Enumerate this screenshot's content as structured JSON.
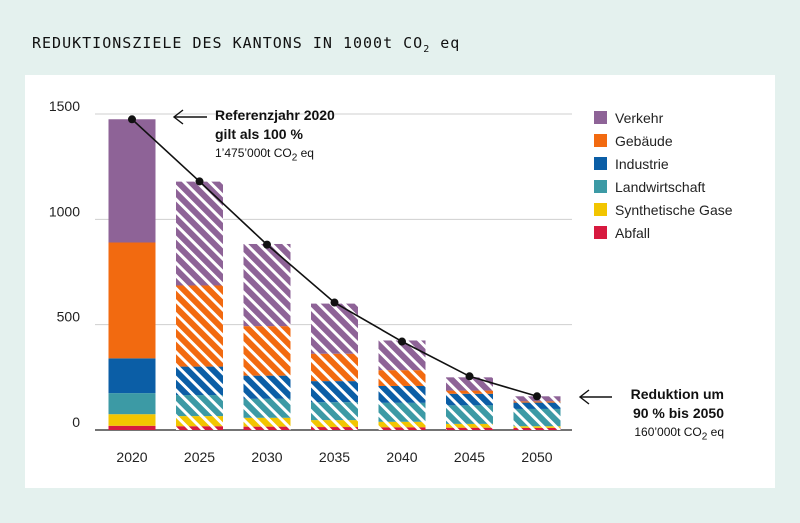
{
  "title": {
    "main": "REDUKTIONSZIELE DES KANTONS IN 1000t CO",
    "subscript": "2",
    "suffix": " eq"
  },
  "chart_data": {
    "type": "bar",
    "stacked": true,
    "title": "REDUKTIONSZIELE DES KANTONS IN 1000t CO2 eq",
    "xlabel": "",
    "ylabel": "",
    "ylim": [
      0,
      1500
    ],
    "yticks": [
      "0",
      "500",
      "1000",
      "1500"
    ],
    "categories": [
      "2020",
      "2025",
      "2030",
      "2035",
      "2040",
      "2045",
      "2050"
    ],
    "hatched_from_index": 1,
    "series": [
      {
        "name": "Abfall",
        "color": "#d7193f",
        "values": [
          20,
          18,
          16,
          14,
          13,
          11,
          10
        ]
      },
      {
        "name": "Synthetische Gase",
        "color": "#f2c500",
        "values": [
          55,
          48,
          42,
          33,
          26,
          18,
          8
        ]
      },
      {
        "name": "Landwirtschaft",
        "color": "#3c9aa5",
        "values": [
          100,
          100,
          90,
          85,
          90,
          88,
          82
        ]
      },
      {
        "name": "Industrie",
        "color": "#0b5ea6",
        "values": [
          165,
          135,
          110,
          100,
          80,
          55,
          30
        ]
      },
      {
        "name": "Gebäude",
        "color": "#f26a10",
        "values": [
          550,
          385,
          235,
          130,
          75,
          15,
          6
        ]
      },
      {
        "name": "Verkehr",
        "color": "#8e6397",
        "values": [
          585,
          493,
          390,
          238,
          141,
          63,
          24
        ]
      }
    ],
    "line": {
      "name": "Zielpfad",
      "values": [
        1475,
        1180,
        880,
        605,
        420,
        255,
        160
      ]
    }
  },
  "annotations": {
    "reference": {
      "line1": "Referenzjahr 2020",
      "line2": "gilt als 100 %",
      "sub": "1’475’000t CO",
      "sub_subscript": "2",
      "sub_suffix": " eq"
    },
    "reduction": {
      "line1": "Reduktion um",
      "line2": "90 % bis 2050",
      "sub": "160’000t CO",
      "sub_subscript": "2",
      "sub_suffix": " eq"
    }
  },
  "legend": [
    {
      "label": "Verkehr",
      "color": "#8e6397"
    },
    {
      "label": "Gebäude",
      "color": "#f26a10"
    },
    {
      "label": "Industrie",
      "color": "#0b5ea6"
    },
    {
      "label": "Landwirtschaft",
      "color": "#3c9aa5"
    },
    {
      "label": "Synthetische Gase",
      "color": "#f2c500"
    },
    {
      "label": "Abfall",
      "color": "#d7193f"
    }
  ]
}
